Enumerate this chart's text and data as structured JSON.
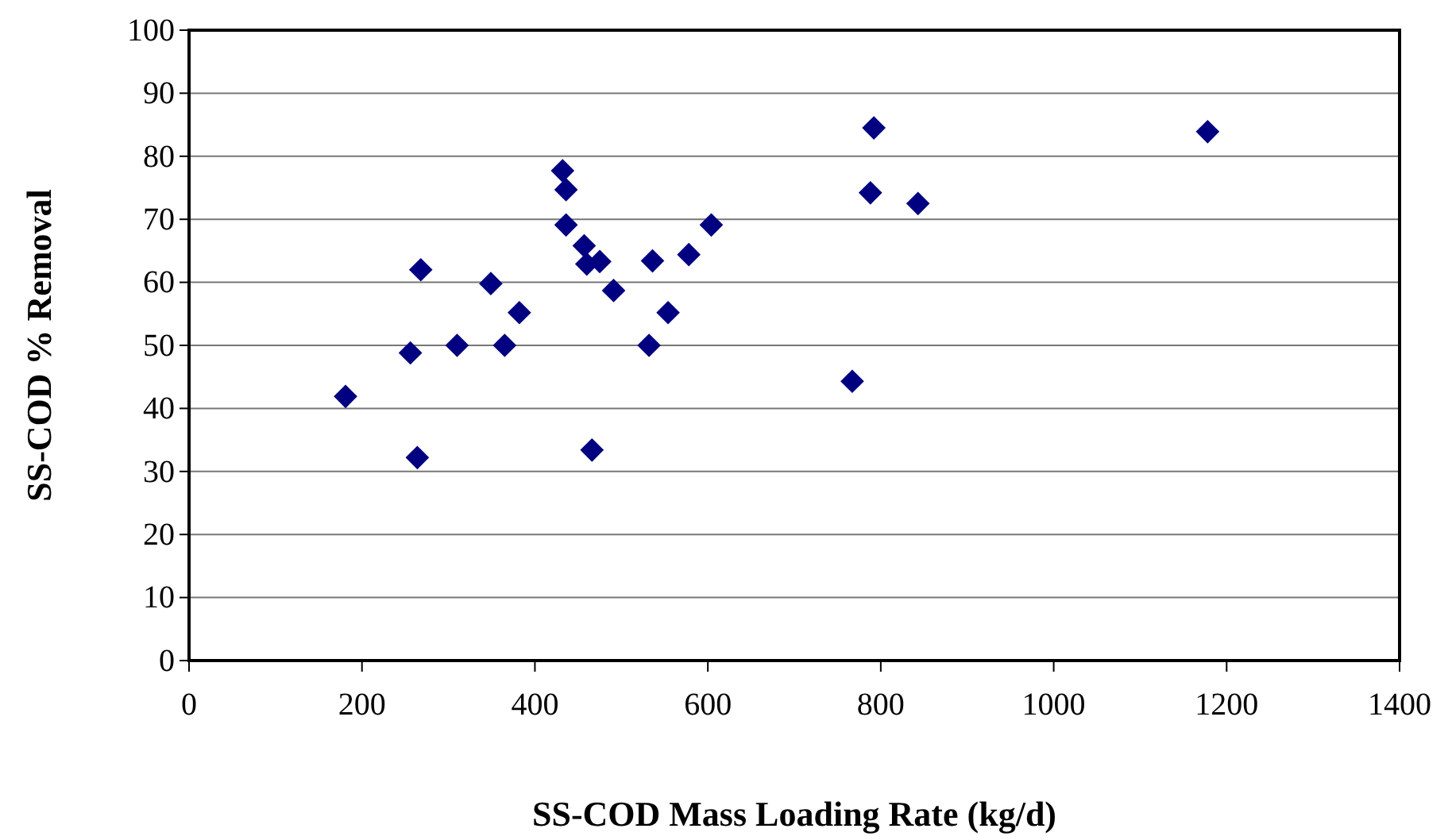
{
  "chart_data": {
    "type": "scatter",
    "xlabel": "SS-COD Mass Loading Rate (kg/d)",
    "ylabel": "SS-COD % Removal",
    "x": [
      181,
      256,
      268,
      264,
      310,
      349,
      365,
      382,
      432,
      436,
      436,
      457,
      460,
      475,
      466,
      491,
      536,
      532,
      554,
      578,
      604,
      792,
      788,
      843,
      767,
      1178
    ],
    "series": [
      {
        "color": "#000080",
        "values": [
          41.9,
          48.8,
          62.0,
          32.2,
          50.0,
          59.8,
          50.0,
          55.2,
          77.7,
          74.7,
          69.1,
          65.8,
          62.9,
          63.3,
          33.4,
          58.7,
          63.4,
          50.0,
          55.2,
          64.4,
          69.1,
          84.5,
          74.2,
          72.5,
          44.3,
          83.9
        ]
      }
    ],
    "xlim": [
      0,
      1400
    ],
    "xticks": [
      0,
      200,
      400,
      600,
      800,
      1000,
      1200,
      1400
    ],
    "ylim": [
      0,
      100
    ],
    "yticks": [
      0,
      10,
      20,
      30,
      40,
      50,
      60,
      70,
      80,
      90,
      100
    ],
    "grid": "y",
    "marker": "diamond"
  }
}
